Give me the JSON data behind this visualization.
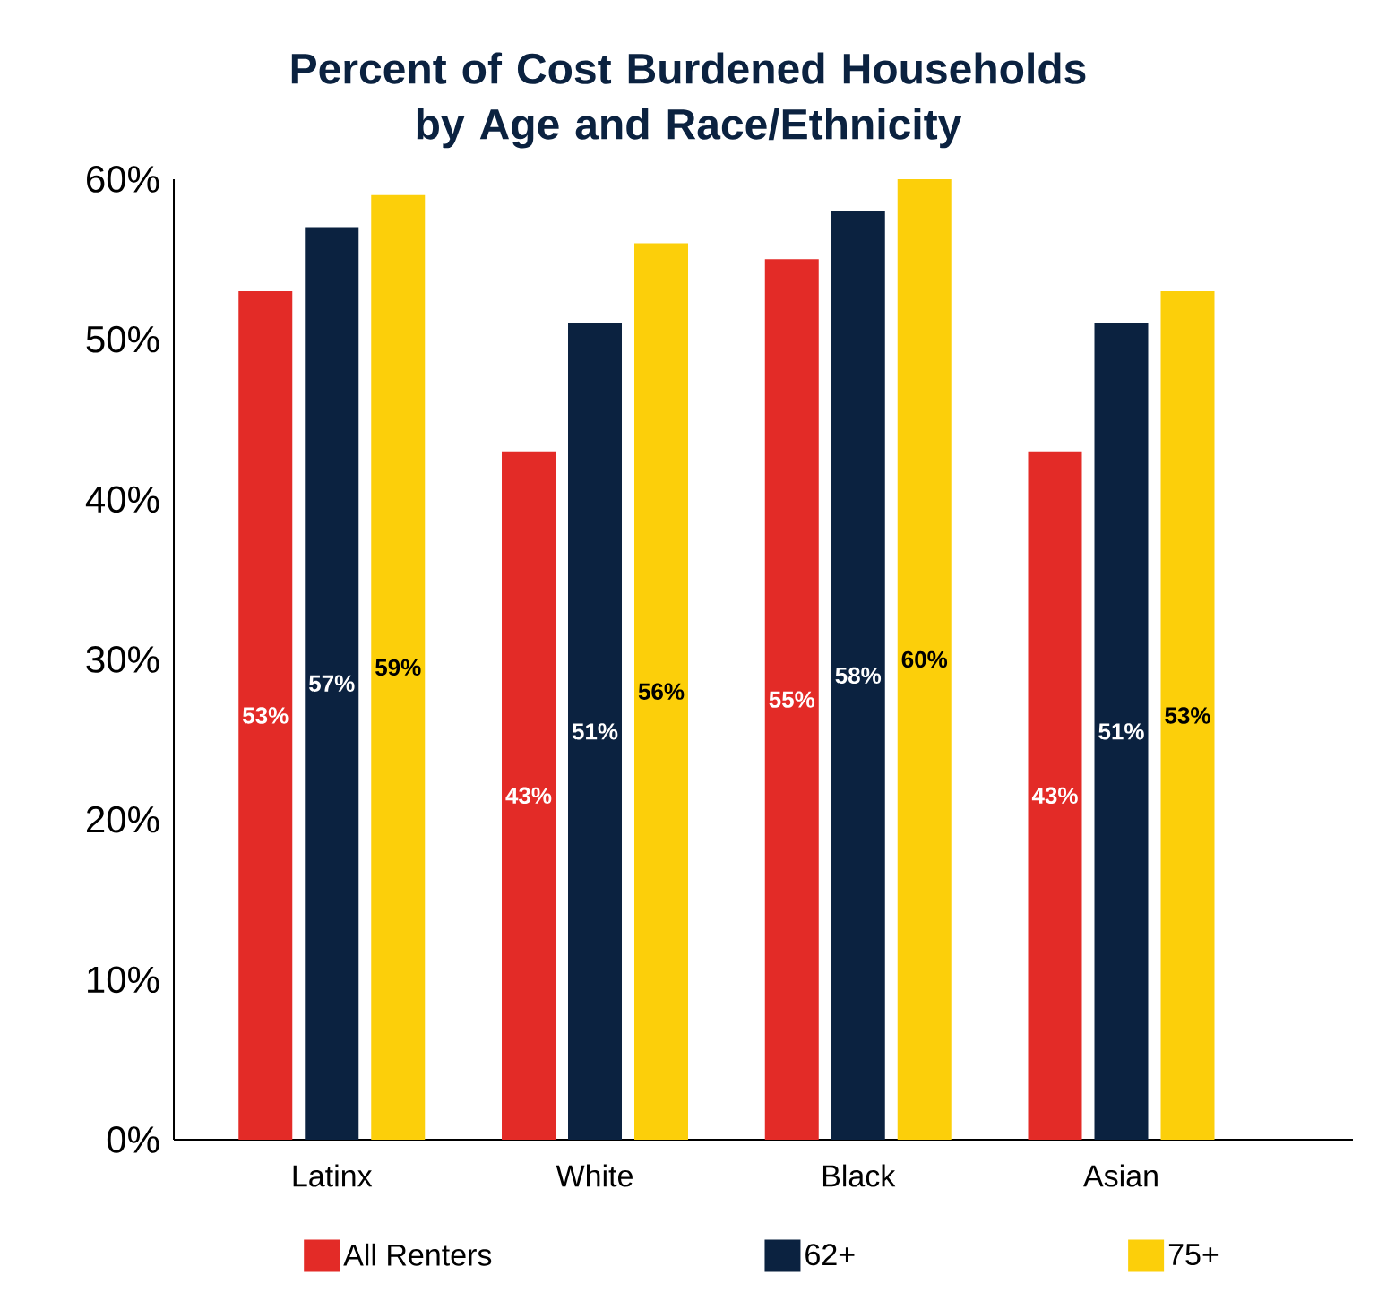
{
  "chart_data": {
    "type": "bar",
    "title": "Percent of Cost Burdened Households by Age and Race/Ethnicity",
    "categories": [
      "Latinx",
      "White",
      "Black",
      "Asian"
    ],
    "series": [
      {
        "name": "All Renters",
        "color": "#e32b27",
        "values": [
          53,
          43,
          55,
          43
        ],
        "value_labels": [
          "53%",
          "43%",
          "55%",
          "43%"
        ]
      },
      {
        "name": "62+",
        "color": "#0b2240",
        "values": [
          57,
          51,
          58,
          51
        ],
        "value_labels": [
          "57%",
          "51%",
          "58%",
          "51%"
        ]
      },
      {
        "name": "75+",
        "color": "#fccf0a",
        "values": [
          59,
          56,
          60,
          53
        ],
        "value_labels": [
          "59%",
          "56%",
          "60%",
          "53%"
        ]
      }
    ],
    "ylim": [
      0,
      60
    ],
    "yticks": [
      {
        "value": 0,
        "label": "0%"
      },
      {
        "value": 10,
        "label": "10%"
      },
      {
        "value": 20,
        "label": "20%"
      },
      {
        "value": 30,
        "label": "30%"
      },
      {
        "value": 40,
        "label": "40%"
      },
      {
        "value": 50,
        "label": "50%"
      },
      {
        "value": 60,
        "label": "60%"
      }
    ],
    "grid": false,
    "legend": "bottom"
  }
}
